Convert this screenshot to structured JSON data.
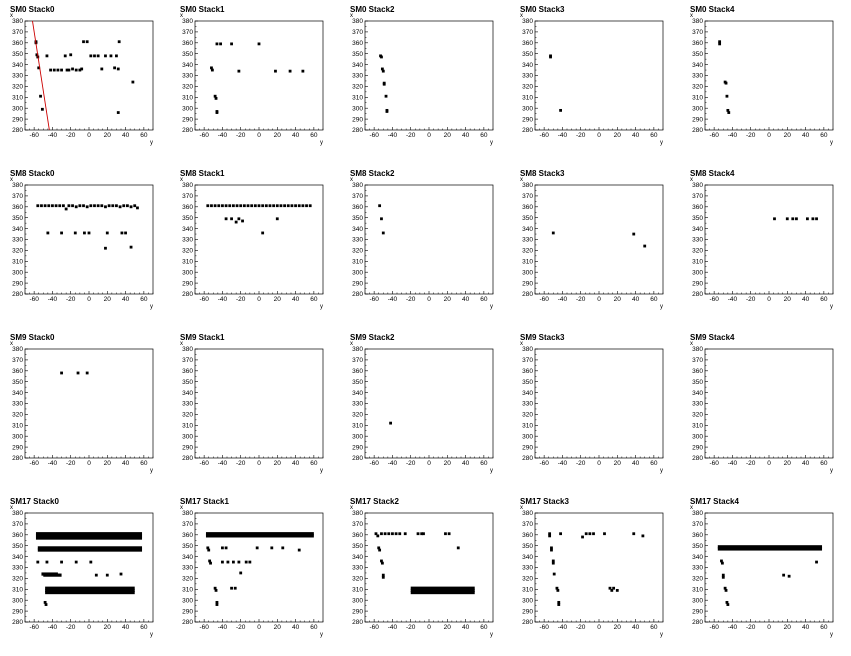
{
  "axes": {
    "xlabel": "y",
    "ylabel": "x",
    "xlim": [
      -70,
      70
    ],
    "ylim": [
      280,
      380
    ],
    "xticks": [
      -60,
      -40,
      -20,
      0,
      20,
      40,
      60
    ],
    "yticks": [
      280,
      290,
      300,
      310,
      320,
      330,
      340,
      350,
      360,
      370,
      380
    ],
    "grid": false,
    "marker_color": "#000000",
    "fit_line_color": "#cc0000"
  },
  "chart_data": [
    {
      "type": "scatter",
      "title": "SM0 Stack0",
      "points": [
        [
          -58,
          361
        ],
        [
          -58,
          360
        ],
        [
          -57,
          349
        ],
        [
          -56,
          347
        ],
        [
          -55,
          337
        ],
        [
          -53,
          311
        ],
        [
          -51,
          299
        ],
        [
          -46,
          348
        ],
        [
          -42,
          335
        ],
        [
          -38,
          335
        ],
        [
          -34,
          335
        ],
        [
          -30,
          335
        ],
        [
          -26,
          348
        ],
        [
          -24,
          335
        ],
        [
          -22,
          335
        ],
        [
          -20,
          349
        ],
        [
          -18,
          336
        ],
        [
          -14,
          335
        ],
        [
          -10,
          335
        ],
        [
          -8,
          336
        ],
        [
          -6,
          361
        ],
        [
          -2,
          361
        ],
        [
          2,
          348
        ],
        [
          6,
          348
        ],
        [
          10,
          348
        ],
        [
          14,
          336
        ],
        [
          18,
          348
        ],
        [
          24,
          348
        ],
        [
          28,
          337
        ],
        [
          30,
          348
        ],
        [
          32,
          336
        ],
        [
          32,
          296
        ],
        [
          33,
          361
        ],
        [
          48,
          324
        ]
      ],
      "fit_line": [
        [
          -62,
          381
        ],
        [
          -43,
          278
        ]
      ]
    },
    {
      "type": "scatter",
      "title": "SM0 Stack1",
      "points": [
        [
          -52,
          337
        ],
        [
          -51,
          335
        ],
        [
          -48,
          311
        ],
        [
          -47,
          309
        ],
        [
          -46,
          297
        ],
        [
          -46,
          296
        ],
        [
          -46,
          359
        ],
        [
          -42,
          359
        ],
        [
          -30,
          359
        ],
        [
          -22,
          334
        ],
        [
          0,
          359
        ],
        [
          18,
          334
        ],
        [
          34,
          334
        ],
        [
          48,
          334
        ]
      ]
    },
    {
      "type": "scatter",
      "title": "SM0 Stack2",
      "points": [
        [
          -53,
          348
        ],
        [
          -52,
          347
        ],
        [
          -51,
          336
        ],
        [
          -50,
          334
        ],
        [
          -49,
          323
        ],
        [
          -49,
          322
        ],
        [
          -47,
          311
        ],
        [
          -46,
          298
        ],
        [
          -46,
          297
        ]
      ]
    },
    {
      "type": "scatter",
      "title": "SM0 Stack3",
      "points": [
        [
          -53,
          348
        ],
        [
          -53,
          347
        ],
        [
          -42,
          298
        ]
      ]
    },
    {
      "type": "scatter",
      "title": "SM0 Stack4",
      "points": [
        [
          -54,
          361
        ],
        [
          -54,
          359
        ],
        [
          -48,
          324
        ],
        [
          -47,
          323
        ],
        [
          -46,
          311
        ],
        [
          -45,
          298
        ],
        [
          -44,
          296
        ]
      ]
    },
    {
      "type": "scatter",
      "title": "SM8 Stack0",
      "points": [
        [
          -56,
          361
        ],
        [
          -52,
          361
        ],
        [
          -48,
          361
        ],
        [
          -44,
          361
        ],
        [
          -40,
          361
        ],
        [
          -36,
          361
        ],
        [
          -32,
          361
        ],
        [
          -28,
          361
        ],
        [
          -25,
          358
        ],
        [
          -22,
          361
        ],
        [
          -18,
          361
        ],
        [
          -14,
          360
        ],
        [
          -10,
          361
        ],
        [
          -6,
          361
        ],
        [
          -2,
          360
        ],
        [
          2,
          361
        ],
        [
          6,
          361
        ],
        [
          10,
          361
        ],
        [
          14,
          361
        ],
        [
          18,
          360
        ],
        [
          22,
          361
        ],
        [
          26,
          361
        ],
        [
          30,
          361
        ],
        [
          34,
          360
        ],
        [
          38,
          361
        ],
        [
          42,
          361
        ],
        [
          46,
          360
        ],
        [
          50,
          361
        ],
        [
          53,
          359
        ],
        [
          -45,
          336
        ],
        [
          -30,
          336
        ],
        [
          -15,
          336
        ],
        [
          0,
          336
        ],
        [
          -5,
          336
        ],
        [
          20,
          336
        ],
        [
          36,
          336
        ],
        [
          40,
          336
        ],
        [
          18,
          322
        ],
        [
          46,
          323
        ]
      ]
    },
    {
      "type": "scatter",
      "title": "SM8 Stack1",
      "points": [
        [
          -56,
          361
        ],
        [
          -52,
          361
        ],
        [
          -48,
          361
        ],
        [
          -44,
          361
        ],
        [
          -40,
          361
        ],
        [
          -36,
          361
        ],
        [
          -32,
          361
        ],
        [
          -28,
          361
        ],
        [
          -24,
          361
        ],
        [
          -20,
          361
        ],
        [
          -16,
          361
        ],
        [
          -12,
          361
        ],
        [
          -8,
          361
        ],
        [
          -4,
          361
        ],
        [
          0,
          361
        ],
        [
          4,
          361
        ],
        [
          8,
          361
        ],
        [
          12,
          361
        ],
        [
          16,
          361
        ],
        [
          20,
          361
        ],
        [
          24,
          361
        ],
        [
          28,
          361
        ],
        [
          32,
          361
        ],
        [
          36,
          361
        ],
        [
          40,
          361
        ],
        [
          44,
          361
        ],
        [
          48,
          361
        ],
        [
          52,
          361
        ],
        [
          56,
          361
        ],
        [
          -36,
          349
        ],
        [
          -30,
          349
        ],
        [
          -25,
          346
        ],
        [
          -22,
          349
        ],
        [
          -18,
          347
        ],
        [
          4,
          336
        ],
        [
          20,
          349
        ]
      ]
    },
    {
      "type": "scatter",
      "title": "SM8 Stack2",
      "points": [
        [
          -54,
          361
        ],
        [
          -52,
          349
        ],
        [
          -50,
          336
        ]
      ]
    },
    {
      "type": "scatter",
      "title": "SM8 Stack3",
      "points": [
        [
          -50,
          336
        ],
        [
          38,
          335
        ],
        [
          50,
          324
        ]
      ]
    },
    {
      "type": "scatter",
      "title": "SM8 Stack4",
      "points": [
        [
          6,
          349
        ],
        [
          20,
          349
        ],
        [
          26,
          349
        ],
        [
          30,
          349
        ],
        [
          42,
          349
        ],
        [
          48,
          349
        ],
        [
          52,
          349
        ]
      ]
    },
    {
      "type": "scatter",
      "title": "SM9 Stack0",
      "points": [
        [
          -30,
          358
        ],
        [
          -12,
          358
        ],
        [
          -2,
          358
        ]
      ]
    },
    {
      "type": "scatter",
      "title": "SM9 Stack1",
      "points": []
    },
    {
      "type": "scatter",
      "title": "SM9 Stack2",
      "points": [
        [
          -42,
          312
        ]
      ]
    },
    {
      "type": "scatter",
      "title": "SM9 Stack3",
      "points": []
    },
    {
      "type": "scatter",
      "title": "SM9 Stack4",
      "points": []
    },
    {
      "type": "scatter",
      "title": "SM17 Stack0",
      "bands": [
        [
          -58,
          58,
          361
        ],
        [
          -58,
          58,
          359
        ],
        [
          -58,
          58,
          357
        ],
        [
          -56,
          58,
          348
        ],
        [
          -56,
          58,
          346
        ],
        [
          -52,
          -34,
          324
        ],
        [
          -50,
          -30,
          323
        ],
        [
          -48,
          50,
          311
        ],
        [
          -48,
          50,
          309
        ],
        [
          -48,
          50,
          307
        ]
      ],
      "points": [
        [
          -56,
          335
        ],
        [
          -46,
          335
        ],
        [
          -30,
          335
        ],
        [
          -14,
          335
        ],
        [
          -48,
          298
        ],
        [
          -47,
          296
        ],
        [
          2,
          335
        ],
        [
          8,
          323
        ],
        [
          20,
          323
        ],
        [
          35,
          324
        ]
      ]
    },
    {
      "type": "scatter",
      "title": "SM17 Stack1",
      "bands": [
        [
          -58,
          60,
          361
        ],
        [
          -58,
          60,
          359
        ]
      ],
      "points": [
        [
          -56,
          348
        ],
        [
          -55,
          346
        ],
        [
          -54,
          336
        ],
        [
          -53,
          334
        ],
        [
          -48,
          311
        ],
        [
          -47,
          309
        ],
        [
          -46,
          298
        ],
        [
          -46,
          296
        ],
        [
          -40,
          335
        ],
        [
          -34,
          335
        ],
        [
          -28,
          335
        ],
        [
          -22,
          335
        ],
        [
          -14,
          335
        ],
        [
          -30,
          311
        ],
        [
          -26,
          311
        ],
        [
          -20,
          325
        ],
        [
          -10,
          335
        ],
        [
          -2,
          348
        ],
        [
          14,
          348
        ],
        [
          26,
          348
        ],
        [
          44,
          346
        ],
        [
          -40,
          348
        ],
        [
          -36,
          348
        ]
      ]
    },
    {
      "type": "scatter",
      "title": "SM17 Stack2",
      "bands": [
        [
          -20,
          50,
          311
        ],
        [
          -20,
          50,
          309
        ],
        [
          -20,
          50,
          307
        ]
      ],
      "points": [
        [
          -58,
          361
        ],
        [
          -56,
          359
        ],
        [
          -52,
          361
        ],
        [
          -48,
          361
        ],
        [
          -44,
          361
        ],
        [
          -40,
          361
        ],
        [
          -36,
          361
        ],
        [
          -32,
          361
        ],
        [
          -26,
          361
        ],
        [
          -12,
          361
        ],
        [
          -8,
          361
        ],
        [
          -6,
          361
        ],
        [
          18,
          361
        ],
        [
          22,
          361
        ],
        [
          -55,
          348
        ],
        [
          -54,
          346
        ],
        [
          -52,
          336
        ],
        [
          -51,
          334
        ],
        [
          -50,
          323
        ],
        [
          -50,
          321
        ],
        [
          32,
          348
        ]
      ]
    },
    {
      "type": "scatter",
      "title": "SM17 Stack3",
      "points": [
        [
          -54,
          361
        ],
        [
          -54,
          359
        ],
        [
          -52,
          348
        ],
        [
          -52,
          346
        ],
        [
          -50,
          336
        ],
        [
          -50,
          334
        ],
        [
          -49,
          324
        ],
        [
          -46,
          311
        ],
        [
          -45,
          309
        ],
        [
          -44,
          298
        ],
        [
          -44,
          296
        ],
        [
          -18,
          358
        ],
        [
          -14,
          361
        ],
        [
          -10,
          361
        ],
        [
          -6,
          361
        ],
        [
          6,
          361
        ],
        [
          12,
          311
        ],
        [
          14,
          309
        ],
        [
          16,
          311
        ],
        [
          20,
          309
        ],
        [
          38,
          361
        ],
        [
          48,
          359
        ],
        [
          -42,
          361
        ]
      ]
    },
    {
      "type": "scatter",
      "title": "SM17 Stack4",
      "bands": [
        [
          -56,
          58,
          349
        ],
        [
          -56,
          58,
          347
        ]
      ],
      "points": [
        [
          -54,
          348
        ],
        [
          -52,
          336
        ],
        [
          -51,
          334
        ],
        [
          -50,
          323
        ],
        [
          -50,
          321
        ],
        [
          -48,
          311
        ],
        [
          -47,
          309
        ],
        [
          -46,
          298
        ],
        [
          -45,
          296
        ],
        [
          16,
          323
        ],
        [
          22,
          322
        ],
        [
          52,
          335
        ]
      ]
    }
  ]
}
